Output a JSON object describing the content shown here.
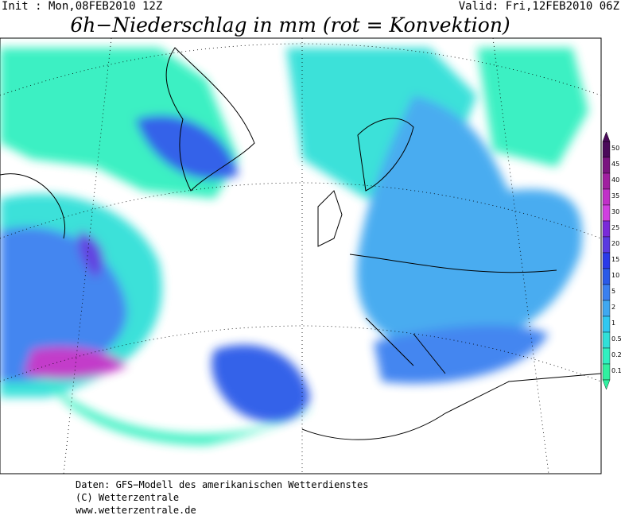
{
  "header": {
    "init": "Init : Mon,08FEB2010 12Z",
    "valid": "Valid: Fri,12FEB2010 06Z",
    "title": "6h−Niederschlag in mm (rot = Konvektion)"
  },
  "legend": {
    "labels": [
      "50",
      "45",
      "40",
      "35",
      "30",
      "25",
      "20",
      "15",
      "10",
      "5",
      "2",
      "1",
      "0.5",
      "0.2",
      "0.1"
    ],
    "colors": [
      "#4b0a5a",
      "#7a1480",
      "#a020a0",
      "#c030c8",
      "#d040e0",
      "#7a2ad8",
      "#5a3ae0",
      "#2a3ae8",
      "#2a5ae8",
      "#3a80f0",
      "#40a8f0",
      "#30c8f0",
      "#30e0d8",
      "#30f0c0",
      "#30f0a0"
    ]
  },
  "footer": {
    "lines": [
      "Daten: GFS−Modell des amerikanischen Wetterdienstes",
      "(C) Wetterzentrale",
      "www.wetterzentrale.de"
    ]
  }
}
